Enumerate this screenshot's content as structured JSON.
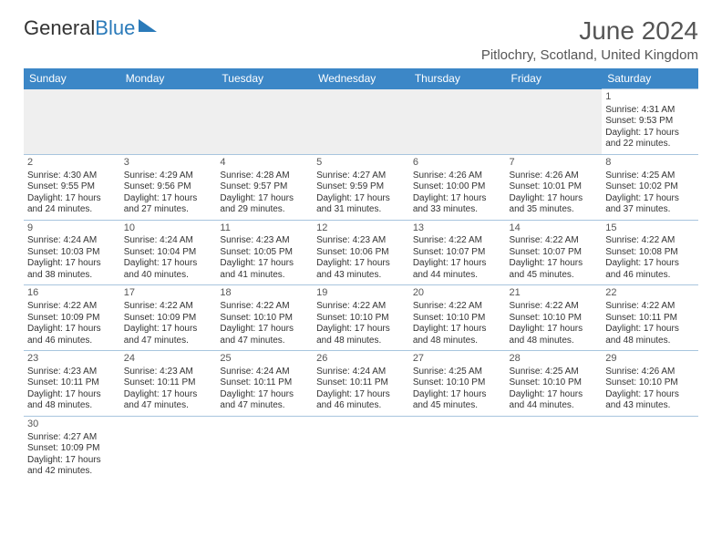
{
  "logo": {
    "part1": "General",
    "part2": "Blue"
  },
  "title": "June 2024",
  "subtitle": "Pitlochry, Scotland, United Kingdom",
  "colors": {
    "header_bg": "#3c87c7",
    "header_text": "#ffffff",
    "border": "#a8c5de",
    "text": "#333333",
    "muted": "#555555",
    "empty_bg": "#efefef",
    "brand_blue": "#2a7ab9"
  },
  "weekdays": [
    "Sunday",
    "Monday",
    "Tuesday",
    "Wednesday",
    "Thursday",
    "Friday",
    "Saturday"
  ],
  "weeks": [
    [
      null,
      null,
      null,
      null,
      null,
      null,
      {
        "d": "1",
        "sr": "4:31 AM",
        "ss": "9:53 PM",
        "dl": "17 hours and 22 minutes."
      }
    ],
    [
      {
        "d": "2",
        "sr": "4:30 AM",
        "ss": "9:55 PM",
        "dl": "17 hours and 24 minutes."
      },
      {
        "d": "3",
        "sr": "4:29 AM",
        "ss": "9:56 PM",
        "dl": "17 hours and 27 minutes."
      },
      {
        "d": "4",
        "sr": "4:28 AM",
        "ss": "9:57 PM",
        "dl": "17 hours and 29 minutes."
      },
      {
        "d": "5",
        "sr": "4:27 AM",
        "ss": "9:59 PM",
        "dl": "17 hours and 31 minutes."
      },
      {
        "d": "6",
        "sr": "4:26 AM",
        "ss": "10:00 PM",
        "dl": "17 hours and 33 minutes."
      },
      {
        "d": "7",
        "sr": "4:26 AM",
        "ss": "10:01 PM",
        "dl": "17 hours and 35 minutes."
      },
      {
        "d": "8",
        "sr": "4:25 AM",
        "ss": "10:02 PM",
        "dl": "17 hours and 37 minutes."
      }
    ],
    [
      {
        "d": "9",
        "sr": "4:24 AM",
        "ss": "10:03 PM",
        "dl": "17 hours and 38 minutes."
      },
      {
        "d": "10",
        "sr": "4:24 AM",
        "ss": "10:04 PM",
        "dl": "17 hours and 40 minutes."
      },
      {
        "d": "11",
        "sr": "4:23 AM",
        "ss": "10:05 PM",
        "dl": "17 hours and 41 minutes."
      },
      {
        "d": "12",
        "sr": "4:23 AM",
        "ss": "10:06 PM",
        "dl": "17 hours and 43 minutes."
      },
      {
        "d": "13",
        "sr": "4:22 AM",
        "ss": "10:07 PM",
        "dl": "17 hours and 44 minutes."
      },
      {
        "d": "14",
        "sr": "4:22 AM",
        "ss": "10:07 PM",
        "dl": "17 hours and 45 minutes."
      },
      {
        "d": "15",
        "sr": "4:22 AM",
        "ss": "10:08 PM",
        "dl": "17 hours and 46 minutes."
      }
    ],
    [
      {
        "d": "16",
        "sr": "4:22 AM",
        "ss": "10:09 PM",
        "dl": "17 hours and 46 minutes."
      },
      {
        "d": "17",
        "sr": "4:22 AM",
        "ss": "10:09 PM",
        "dl": "17 hours and 47 minutes."
      },
      {
        "d": "18",
        "sr": "4:22 AM",
        "ss": "10:10 PM",
        "dl": "17 hours and 47 minutes."
      },
      {
        "d": "19",
        "sr": "4:22 AM",
        "ss": "10:10 PM",
        "dl": "17 hours and 48 minutes."
      },
      {
        "d": "20",
        "sr": "4:22 AM",
        "ss": "10:10 PM",
        "dl": "17 hours and 48 minutes."
      },
      {
        "d": "21",
        "sr": "4:22 AM",
        "ss": "10:10 PM",
        "dl": "17 hours and 48 minutes."
      },
      {
        "d": "22",
        "sr": "4:22 AM",
        "ss": "10:11 PM",
        "dl": "17 hours and 48 minutes."
      }
    ],
    [
      {
        "d": "23",
        "sr": "4:23 AM",
        "ss": "10:11 PM",
        "dl": "17 hours and 48 minutes."
      },
      {
        "d": "24",
        "sr": "4:23 AM",
        "ss": "10:11 PM",
        "dl": "17 hours and 47 minutes."
      },
      {
        "d": "25",
        "sr": "4:24 AM",
        "ss": "10:11 PM",
        "dl": "17 hours and 47 minutes."
      },
      {
        "d": "26",
        "sr": "4:24 AM",
        "ss": "10:11 PM",
        "dl": "17 hours and 46 minutes."
      },
      {
        "d": "27",
        "sr": "4:25 AM",
        "ss": "10:10 PM",
        "dl": "17 hours and 45 minutes."
      },
      {
        "d": "28",
        "sr": "4:25 AM",
        "ss": "10:10 PM",
        "dl": "17 hours and 44 minutes."
      },
      {
        "d": "29",
        "sr": "4:26 AM",
        "ss": "10:10 PM",
        "dl": "17 hours and 43 minutes."
      }
    ],
    [
      {
        "d": "30",
        "sr": "4:27 AM",
        "ss": "10:09 PM",
        "dl": "17 hours and 42 minutes."
      },
      null,
      null,
      null,
      null,
      null,
      null
    ]
  ],
  "labels": {
    "sunrise": "Sunrise:",
    "sunset": "Sunset:",
    "daylight": "Daylight:"
  }
}
